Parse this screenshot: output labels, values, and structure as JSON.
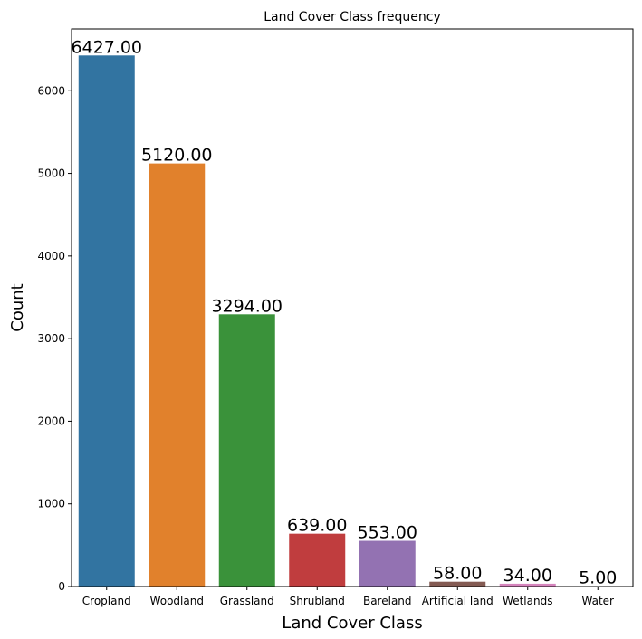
{
  "chart_data": {
    "type": "bar",
    "title": "Land Cover Class frequency",
    "xlabel": "Land Cover Class",
    "ylabel": "Count",
    "categories": [
      "Cropland",
      "Woodland",
      "Grassland",
      "Shrubland",
      "Bareland",
      "Artificial land",
      "Wetlands",
      "Water"
    ],
    "values": [
      6427,
      5120,
      3294,
      639,
      553,
      58,
      34,
      5
    ],
    "value_labels": [
      "6427.00",
      "5120.00",
      "3294.00",
      "639.00",
      "553.00",
      "58.00",
      "34.00",
      "5.00"
    ],
    "colors": [
      "#3274a1",
      "#e1812c",
      "#3a923a",
      "#c03d3e",
      "#9372b2",
      "#845b53",
      "#d684bd",
      "#7f7f7f"
    ],
    "ylim": [
      0,
      6748
    ],
    "yticks": [
      0,
      1000,
      2000,
      3000,
      4000,
      5000,
      6000
    ],
    "grid": false
  }
}
